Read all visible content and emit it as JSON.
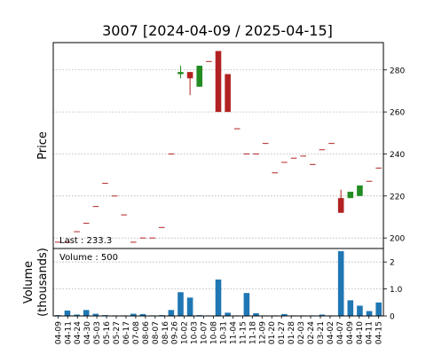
{
  "chart_data": {
    "type": "candlestick",
    "title": "3007   [2024-04-09 / 2025-04-15]",
    "price_panel": {
      "ylabel": "Price",
      "ylim": [
        195,
        293
      ],
      "yticks": [
        200,
        220,
        240,
        260,
        280
      ],
      "grid": true,
      "annotation": "Last : 233.3"
    },
    "volume_panel": {
      "ylabel": "Volume\n(thousands)",
      "ylim": [
        0,
        2.5
      ],
      "yticks": [
        0,
        1.0,
        2
      ],
      "ytick_labels": [
        "0",
        "1.0",
        "2"
      ],
      "grid": true,
      "annotation": "Volume : 500",
      "bar_color": "#1f77b4"
    },
    "colors": {
      "up": "#228b22",
      "down": "#b22222",
      "doji": "#b22222"
    },
    "x_tick_labels": [
      "04-09",
      "04-11",
      "04-24",
      "04-30",
      "05-03",
      "05-16",
      "05-27",
      "06-17",
      "07-08",
      "08-06",
      "08-07",
      "08-16",
      "09-26",
      "10-02",
      "10-03",
      "10-07",
      "10-08",
      "10-31",
      "11-04",
      "11-15",
      "11-18",
      "12-09",
      "01-20",
      "01-27",
      "01-28",
      "02-03",
      "02-24",
      "03-21",
      "04-02",
      "04-07",
      "04-09",
      "04-10",
      "04-11",
      "04-15"
    ],
    "candles": [
      {
        "date": "04-09",
        "open": 198,
        "high": 198,
        "low": 198,
        "close": 198,
        "volume": 0.03
      },
      {
        "date": "04-11",
        "open": 198,
        "high": 198,
        "low": 198,
        "close": 198,
        "volume": 0.2
      },
      {
        "date": "04-24",
        "open": 203,
        "high": 203,
        "low": 203,
        "close": 203,
        "volume": 0.05
      },
      {
        "date": "04-30",
        "open": 207,
        "high": 207,
        "low": 207,
        "close": 207,
        "volume": 0.22
      },
      {
        "date": "05-03",
        "open": 215,
        "high": 215,
        "low": 215,
        "close": 215,
        "volume": 0.08
      },
      {
        "date": "05-16",
        "open": 226,
        "high": 226,
        "low": 226,
        "close": 226,
        "volume": 0.03
      },
      {
        "date": "05-27",
        "open": 220,
        "high": 220,
        "low": 220,
        "close": 220,
        "volume": 0.02
      },
      {
        "date": "06-17",
        "open": 211,
        "high": 211,
        "low": 211,
        "close": 211,
        "volume": 0.02
      },
      {
        "date": "07-08",
        "open": 198,
        "high": 198,
        "low": 198,
        "close": 198,
        "volume": 0.08
      },
      {
        "date": "08-06",
        "open": 200,
        "high": 200,
        "low": 200,
        "close": 200,
        "volume": 0.07
      },
      {
        "date": "08-07",
        "open": 200,
        "high": 200,
        "low": 200,
        "close": 200,
        "volume": 0.02
      },
      {
        "date": "08-16",
        "open": 205,
        "high": 205,
        "low": 205,
        "close": 205,
        "volume": 0.03
      },
      {
        "date": "09-26",
        "open": 240,
        "high": 240,
        "low": 240,
        "close": 240,
        "volume": 0.22
      },
      {
        "date": "10-02",
        "open": 278,
        "high": 282,
        "low": 276,
        "close": 279,
        "volume": 0.88
      },
      {
        "date": "10-03",
        "open": 279,
        "high": 279,
        "low": 268,
        "close": 276,
        "volume": 0.68
      },
      {
        "date": "10-07",
        "open": 272,
        "high": 282,
        "low": 272,
        "close": 282,
        "volume": 0.03
      },
      {
        "date": "10-08",
        "open": 284,
        "high": 284,
        "low": 284,
        "close": 284,
        "volume": 0.02
      },
      {
        "date": "10-31",
        "open": 289,
        "high": 289,
        "low": 260,
        "close": 260,
        "volume": 1.35
      },
      {
        "date": "11-04",
        "open": 278,
        "high": 278,
        "low": 260,
        "close": 260,
        "volume": 0.12
      },
      {
        "date": "11-15",
        "open": 252,
        "high": 252,
        "low": 252,
        "close": 252,
        "volume": 0.02
      },
      {
        "date": "11-18",
        "open": 240,
        "high": 240,
        "low": 240,
        "close": 240,
        "volume": 0.85
      },
      {
        "date": "12-09",
        "open": 240,
        "high": 240,
        "low": 240,
        "close": 240,
        "volume": 0.1
      },
      {
        "date": "01-20",
        "open": 245,
        "high": 245,
        "low": 245,
        "close": 245,
        "volume": 0.02
      },
      {
        "date": "01-27",
        "open": 231,
        "high": 231,
        "low": 231,
        "close": 231,
        "volume": 0.02
      },
      {
        "date": "01-28",
        "open": 236,
        "high": 236,
        "low": 236,
        "close": 236,
        "volume": 0.07
      },
      {
        "date": "02-03",
        "open": 238,
        "high": 238,
        "low": 238,
        "close": 238,
        "volume": 0.02
      },
      {
        "date": "02-24",
        "open": 239,
        "high": 239,
        "low": 239,
        "close": 239,
        "volume": 0.02
      },
      {
        "date": "03-21",
        "open": 235,
        "high": 235,
        "low": 235,
        "close": 235,
        "volume": 0.02
      },
      {
        "date": "04-02",
        "open": 242,
        "high": 242,
        "low": 242,
        "close": 242,
        "volume": 0.05
      },
      {
        "date": "04-07",
        "open": 245,
        "high": 245,
        "low": 245,
        "close": 245,
        "volume": 0.02
      },
      {
        "date": "04-09",
        "open": 219,
        "high": 223,
        "low": 212,
        "close": 212,
        "volume": 2.4
      },
      {
        "date": "04-10",
        "open": 219,
        "high": 222,
        "low": 219,
        "close": 222,
        "volume": 0.58
      },
      {
        "date": "04-11",
        "open": 220,
        "high": 225,
        "low": 220,
        "close": 225,
        "volume": 0.38
      },
      {
        "date": "04-15",
        "open": 227,
        "high": 227,
        "low": 227,
        "close": 227,
        "volume": 0.18
      },
      {
        "date": "04-15b",
        "open": 233.3,
        "high": 233.3,
        "low": 233.3,
        "close": 233.3,
        "volume": 0.5
      }
    ]
  }
}
